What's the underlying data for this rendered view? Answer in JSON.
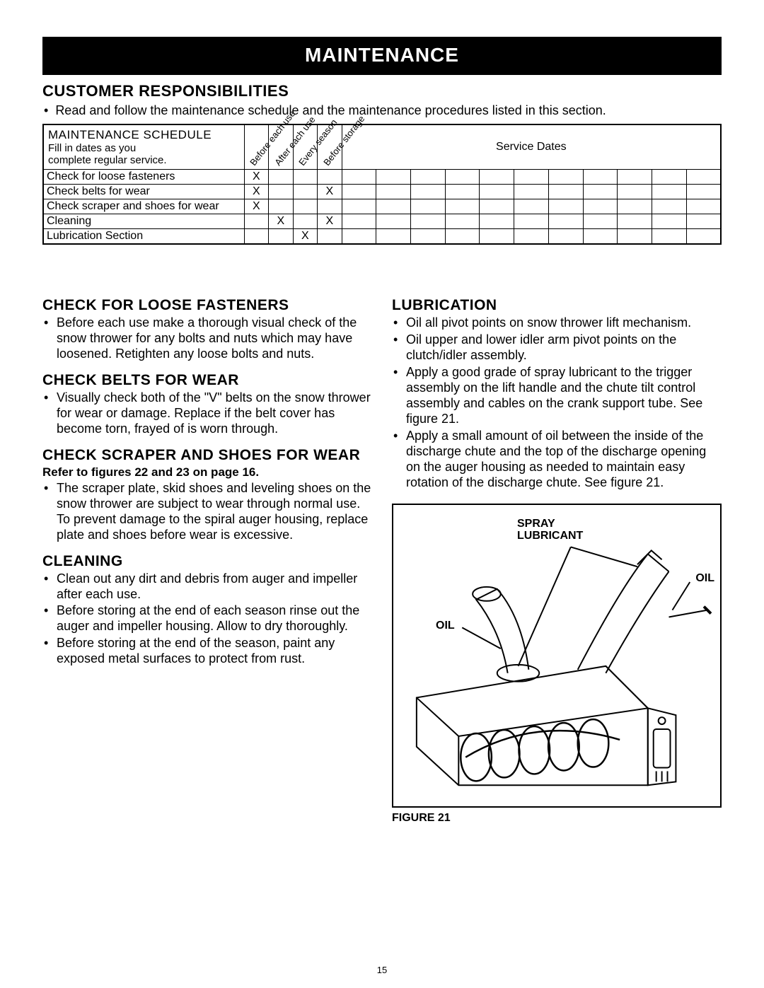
{
  "banner": "MAINTENANCE",
  "section_title": "CUSTOMER RESPONSIBILITIES",
  "intro_bullet": "Read and follow the maintenance schedule and the maintenance procedures listed in this section.",
  "schedule": {
    "header_line1": "MAINTENANCE SCHEDULE",
    "header_line2": "Fill in dates as you",
    "header_line3": "complete regular service.",
    "diag_cols": [
      "Before each use",
      "After each use",
      "Every season",
      "Before storage"
    ],
    "service_dates_label": "Service Dates",
    "num_date_cols": 11,
    "rows": [
      {
        "label": "Check for loose fasteners",
        "checks": [
          "X",
          "",
          "",
          ""
        ]
      },
      {
        "label": "Check belts for wear",
        "checks": [
          "X",
          "",
          "",
          "X"
        ]
      },
      {
        "label": "Check scraper and shoes for wear",
        "checks": [
          "X",
          "",
          "",
          ""
        ]
      },
      {
        "label": "Cleaning",
        "checks": [
          "",
          "X",
          "",
          "X"
        ]
      },
      {
        "label": "Lubrication Section",
        "checks": [
          "",
          "",
          "X",
          ""
        ]
      }
    ]
  },
  "left_sections": [
    {
      "heading": "CHECK FOR LOOSE FASTENERS",
      "bullets": [
        "Before each use make a thorough visual check of the snow thrower for any bolts and nuts which may have loosened. Retighten any loose bolts and nuts."
      ]
    },
    {
      "heading": "CHECK BELTS FOR WEAR",
      "bullets": [
        "Visually check both of the \"V\" belts on the snow thrower for wear or damage. Replace if the belt cover has become torn, frayed of is worn through."
      ]
    },
    {
      "heading": "CHECK SCRAPER AND SHOES FOR WEAR",
      "subbold": "Refer to figures 22 and 23 on page 16.",
      "bullets": [
        "The scraper plate, skid shoes and leveling shoes on the snow thrower are subject to wear through normal use. To prevent damage to the spiral auger housing, replace plate and shoes before wear is excessive."
      ]
    },
    {
      "heading": "CLEANING",
      "bullets": [
        "Clean out any dirt and debris from auger and impeller after each use.",
        "Before storing at the end of each season rinse out the auger and impeller housing. Allow to dry thoroughly.",
        "Before storing at the end of the season, paint any exposed metal surfaces to protect from rust."
      ]
    }
  ],
  "right_section": {
    "heading": "LUBRICATION",
    "bullets": [
      "Oil all pivot points on snow thrower lift mechanism.",
      "Oil upper and lower idler arm pivot points on the clutch/idler assembly.",
      "Apply a good grade of spray lubricant to the trigger assembly on the lift handle and the chute tilt control assembly and cables on the crank support tube. See figure 21.",
      "Apply a small amount of oil between the inside of the discharge chute and the top of the discharge opening on the auger housing as needed to maintain easy rotation of the discharge chute. See figure 21."
    ]
  },
  "figure": {
    "label_spray": "SPRAY\nLUBRICANT",
    "label_oil_right": "OIL",
    "label_oil_left": "OIL",
    "caption": "FIGURE 21"
  },
  "page_number": "15"
}
